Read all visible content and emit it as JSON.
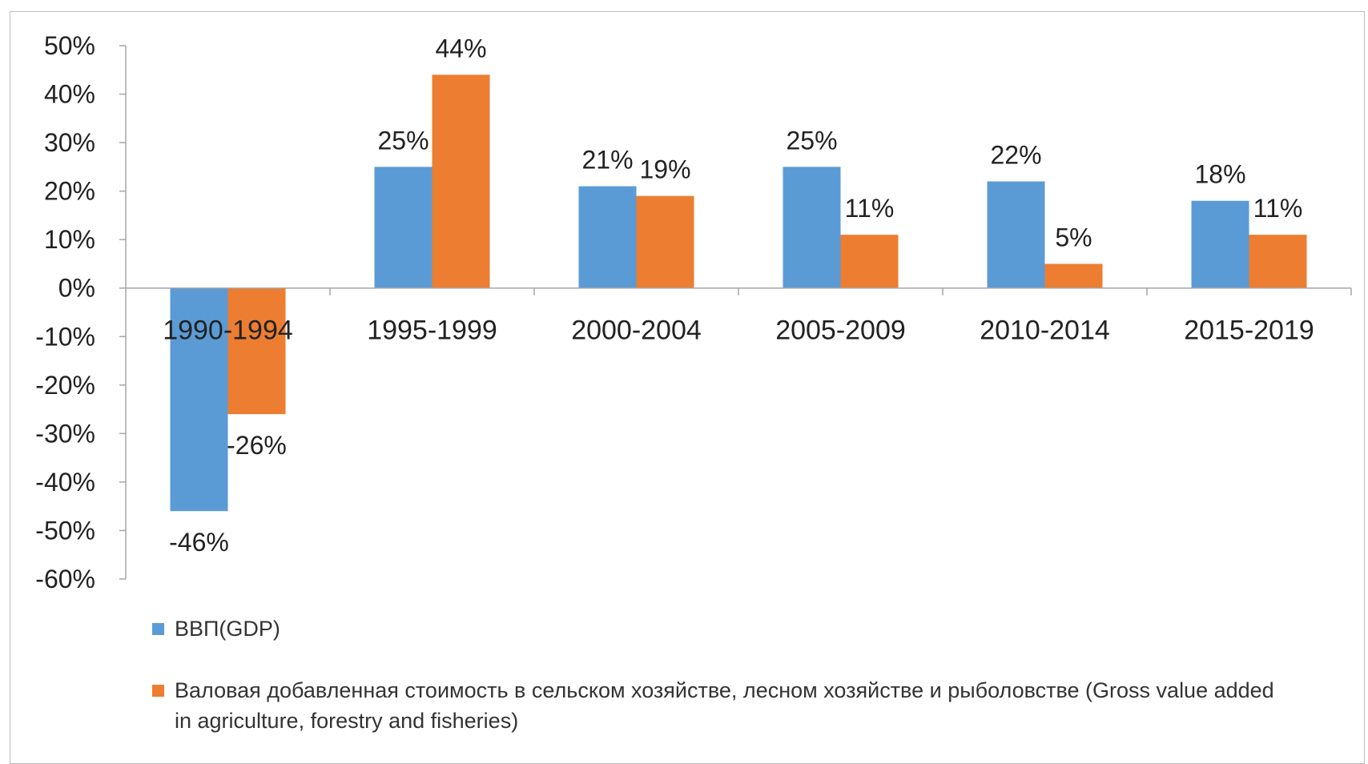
{
  "chart_data": {
    "type": "bar",
    "title": "",
    "xlabel": "",
    "ylabel": "",
    "categories": [
      "1990-1994",
      "1995-1999",
      "2000-2004",
      "2005-2009",
      "2010-2014",
      "2015-2019"
    ],
    "series": [
      {
        "name": "ВВП(GDP)",
        "color": "#5B9BD5",
        "values": [
          -46,
          25,
          21,
          25,
          22,
          18
        ],
        "labels": [
          "-46%",
          "25%",
          "21%",
          "25%",
          "22%",
          "18%"
        ]
      },
      {
        "name": "Валовая добавленная стоимость в сельском хозяйстве,  лесном хозяйстве и рыболовстве (Gross value added in agriculture, forestry and fisheries)",
        "color": "#ED7D31",
        "values": [
          -26,
          44,
          19,
          11,
          5,
          11
        ],
        "labels": [
          "-26%",
          "44%",
          "19%",
          "11%",
          "5%",
          "11%"
        ]
      }
    ],
    "yticks": [
      "50%",
      "40%",
      "30%",
      "20%",
      "10%",
      "0%",
      "-10%",
      "-20%",
      "-30%",
      "-40%",
      "-50%",
      "-60%"
    ],
    "ylim": [
      -60,
      50
    ],
    "grid": false,
    "legend_position": "bottom-left"
  }
}
